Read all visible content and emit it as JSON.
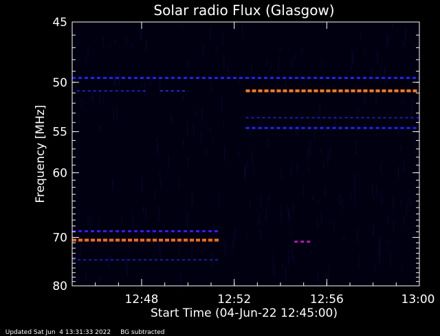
{
  "chart_data": {
    "type": "heatmap",
    "title": "Solar radio Flux (Glasgow)",
    "xlabel": "Start Time (04-Jun-22 12:45:00)",
    "ylabel": "Frequency [MHz]",
    "x_unit": "minutes after 12:45:00",
    "xlim": [
      0,
      15
    ],
    "ylim": [
      80,
      45
    ],
    "y_scale": "reciprocal",
    "xticks": [
      {
        "value": 3,
        "label": "12:48"
      },
      {
        "value": 7,
        "label": "12:52"
      },
      {
        "value": 11,
        "label": "12:56"
      },
      {
        "value": 15,
        "label": "13:00"
      }
    ],
    "yticks": [
      {
        "value": 45,
        "label": "45"
      },
      {
        "value": 50,
        "label": "50"
      },
      {
        "value": 55,
        "label": "55"
      },
      {
        "value": 60,
        "label": "60"
      },
      {
        "value": 70,
        "label": "70"
      },
      {
        "value": 80,
        "label": "80"
      }
    ],
    "emission_bands": [
      {
        "freq_mhz": 49.6,
        "x_start": 0.0,
        "x_end": 15.0,
        "intensity": "medium",
        "color": "#2323ff"
      },
      {
        "freq_mhz": 50.8,
        "x_start": 0.2,
        "x_end": 3.2,
        "intensity": "low",
        "color": "#2020c8"
      },
      {
        "freq_mhz": 50.8,
        "x_start": 3.8,
        "x_end": 5.0,
        "intensity": "low",
        "color": "#2828e0"
      },
      {
        "freq_mhz": 50.8,
        "x_start": 7.5,
        "x_end": 15.0,
        "intensity": "high",
        "color": "#ff8a1e"
      },
      {
        "freq_mhz": 53.5,
        "x_start": 7.5,
        "x_end": 15.0,
        "intensity": "low",
        "color": "#1c1cc0"
      },
      {
        "freq_mhz": 54.6,
        "x_start": 7.5,
        "x_end": 15.0,
        "intensity": "medium",
        "color": "#2323ff"
      },
      {
        "freq_mhz": 68.9,
        "x_start": 0.0,
        "x_end": 6.4,
        "intensity": "medium",
        "color": "#3b18ff"
      },
      {
        "freq_mhz": 70.5,
        "x_start": 0.0,
        "x_end": 6.4,
        "intensity": "high",
        "color": "#ff7a18"
      },
      {
        "freq_mhz": 70.8,
        "x_start": 9.6,
        "x_end": 10.4,
        "intensity": "medium",
        "color": "#b01ab8"
      },
      {
        "freq_mhz": 74.3,
        "x_start": 0.0,
        "x_end": 6.4,
        "intensity": "low",
        "color": "#1c1cb0"
      }
    ]
  },
  "footer": {
    "updated": "Updated Sat Jun  4 13:31:33 2022",
    "note": "BG subtracted"
  },
  "colors": {
    "background": "#000000",
    "plot_background": "#000010",
    "axis": "#ffffff"
  }
}
